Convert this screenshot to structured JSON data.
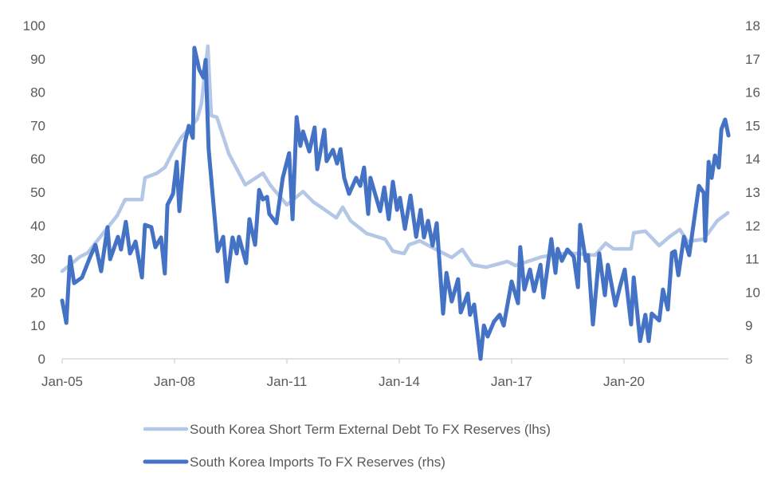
{
  "chart_data": {
    "type": "line",
    "title": "",
    "y_left": {
      "min": 0,
      "max": 100,
      "ticks": [
        "0",
        "10",
        "20",
        "30",
        "40",
        "50",
        "60",
        "70",
        "80",
        "90",
        "100"
      ]
    },
    "y_right": {
      "min": 8,
      "max": 18,
      "ticks": [
        "8",
        "9",
        "10",
        "11",
        "12",
        "13",
        "14",
        "15",
        "16",
        "17",
        "18"
      ]
    },
    "x": {
      "min": 2005.0,
      "max": 2022.8,
      "ticks": [
        {
          "label": "Jan-05",
          "value": 2005
        },
        {
          "label": "Jan-08",
          "value": 2008
        },
        {
          "label": "Jan-11",
          "value": 2011
        },
        {
          "label": "Jan-14",
          "value": 2014
        },
        {
          "label": "Jan-17",
          "value": 2017
        },
        {
          "label": "Jan-20",
          "value": 2020
        }
      ]
    },
    "grid": false,
    "legend_placement": "bottom",
    "series": [
      {
        "name": "South Korea Short Term External Debt To FX Reserves (lhs)",
        "axis": "left",
        "color": "#B4C7E7",
        "points": [
          [
            2005.0,
            26.3
          ],
          [
            2005.47,
            30.6
          ],
          [
            2005.68,
            31.8
          ],
          [
            2006.47,
            43
          ],
          [
            2006.68,
            47.8
          ],
          [
            2007.13,
            47.8
          ],
          [
            2007.21,
            54.3
          ],
          [
            2007.53,
            55.7
          ],
          [
            2007.74,
            57.4
          ],
          [
            2007.96,
            62.2
          ],
          [
            2008.17,
            66.3
          ],
          [
            2008.6,
            71.8
          ],
          [
            2008.72,
            76.6
          ],
          [
            2008.89,
            93.8
          ],
          [
            2008.98,
            73
          ],
          [
            2009.13,
            72.5
          ],
          [
            2009.45,
            61.5
          ],
          [
            2009.89,
            52.2
          ],
          [
            2010.36,
            55.7
          ],
          [
            2010.57,
            51.9
          ],
          [
            2011.0,
            46.2
          ],
          [
            2011.43,
            50.2
          ],
          [
            2011.7,
            47.1
          ],
          [
            2011.91,
            45.5
          ],
          [
            2012.32,
            42.3
          ],
          [
            2012.49,
            45.5
          ],
          [
            2012.7,
            41.4
          ],
          [
            2013.13,
            37.6
          ],
          [
            2013.62,
            35.9
          ],
          [
            2013.83,
            32.3
          ],
          [
            2014.13,
            31.6
          ],
          [
            2014.26,
            34.2
          ],
          [
            2014.55,
            35.4
          ],
          [
            2014.98,
            32.8
          ],
          [
            2015.4,
            30.4
          ],
          [
            2015.68,
            32.8
          ],
          [
            2015.96,
            28.2
          ],
          [
            2016.32,
            27.5
          ],
          [
            2016.89,
            29.2
          ],
          [
            2017.1,
            28
          ],
          [
            2017.8,
            30.6
          ],
          [
            2018.51,
            31.8
          ],
          [
            2019.23,
            31.1
          ],
          [
            2019.51,
            34.7
          ],
          [
            2019.72,
            33
          ],
          [
            2020.19,
            33
          ],
          [
            2020.26,
            37.8
          ],
          [
            2020.57,
            38.3
          ],
          [
            2020.94,
            34
          ],
          [
            2021.21,
            36.6
          ],
          [
            2021.49,
            38.8
          ],
          [
            2021.7,
            35.2
          ],
          [
            2022.13,
            35.9
          ],
          [
            2022.49,
            41.4
          ],
          [
            2022.77,
            43.8
          ]
        ]
      },
      {
        "name": "South Korea Imports To FX Reserves (rhs)",
        "axis": "right",
        "color": "#4472C4",
        "points": [
          [
            2005.0,
            9.75
          ],
          [
            2005.11,
            9.08
          ],
          [
            2005.21,
            11.06
          ],
          [
            2005.32,
            10.27
          ],
          [
            2005.53,
            10.44
          ],
          [
            2005.74,
            11.04
          ],
          [
            2005.89,
            11.42
          ],
          [
            2006.04,
            10.63
          ],
          [
            2006.21,
            11.95
          ],
          [
            2006.28,
            10.99
          ],
          [
            2006.49,
            11.66
          ],
          [
            2006.57,
            11.28
          ],
          [
            2006.7,
            12.11
          ],
          [
            2006.81,
            11.16
          ],
          [
            2006.96,
            11.52
          ],
          [
            2007.13,
            10.44
          ],
          [
            2007.21,
            12.02
          ],
          [
            2007.38,
            11.95
          ],
          [
            2007.49,
            11.35
          ],
          [
            2007.64,
            11.64
          ],
          [
            2007.74,
            10.56
          ],
          [
            2007.81,
            12.62
          ],
          [
            2007.96,
            12.95
          ],
          [
            2008.06,
            13.91
          ],
          [
            2008.13,
            12.43
          ],
          [
            2008.28,
            14.51
          ],
          [
            2008.38,
            14.99
          ],
          [
            2008.49,
            14.63
          ],
          [
            2008.53,
            17.33
          ],
          [
            2008.66,
            16.68
          ],
          [
            2008.77,
            16.44
          ],
          [
            2008.83,
            16.97
          ],
          [
            2008.91,
            14.29
          ],
          [
            2009.15,
            11.23
          ],
          [
            2009.3,
            11.66
          ],
          [
            2009.4,
            10.32
          ],
          [
            2009.55,
            11.64
          ],
          [
            2009.66,
            11.16
          ],
          [
            2009.72,
            11.66
          ],
          [
            2009.91,
            10.87
          ],
          [
            2010.0,
            12.19
          ],
          [
            2010.15,
            11.42
          ],
          [
            2010.26,
            13.07
          ],
          [
            2010.36,
            12.78
          ],
          [
            2010.47,
            12.86
          ],
          [
            2010.53,
            12.35
          ],
          [
            2010.72,
            12.07
          ],
          [
            2010.89,
            13.43
          ],
          [
            2011.06,
            14.17
          ],
          [
            2011.15,
            12.19
          ],
          [
            2011.26,
            15.25
          ],
          [
            2011.36,
            14.39
          ],
          [
            2011.43,
            14.82
          ],
          [
            2011.6,
            14.22
          ],
          [
            2011.74,
            14.94
          ],
          [
            2011.81,
            13.69
          ],
          [
            2012.0,
            14.87
          ],
          [
            2012.06,
            13.93
          ],
          [
            2012.23,
            14.27
          ],
          [
            2012.34,
            13.86
          ],
          [
            2012.43,
            14.29
          ],
          [
            2012.53,
            13.43
          ],
          [
            2012.66,
            12.95
          ],
          [
            2012.85,
            13.43
          ],
          [
            2012.96,
            13.19
          ],
          [
            2013.06,
            13.74
          ],
          [
            2013.17,
            12.35
          ],
          [
            2013.23,
            13.43
          ],
          [
            2013.49,
            12.43
          ],
          [
            2013.6,
            13.14
          ],
          [
            2013.72,
            12.19
          ],
          [
            2013.83,
            13.31
          ],
          [
            2013.94,
            12.47
          ],
          [
            2014.02,
            12.83
          ],
          [
            2014.15,
            11.9
          ],
          [
            2014.3,
            12.9
          ],
          [
            2014.45,
            11.66
          ],
          [
            2014.57,
            12.47
          ],
          [
            2014.66,
            11.64
          ],
          [
            2014.77,
            12.14
          ],
          [
            2014.89,
            11.4
          ],
          [
            2015.0,
            12.07
          ],
          [
            2015.17,
            9.36
          ],
          [
            2015.26,
            10.58
          ],
          [
            2015.4,
            9.72
          ],
          [
            2015.57,
            10.39
          ],
          [
            2015.64,
            9.39
          ],
          [
            2015.83,
            9.96
          ],
          [
            2015.89,
            9.32
          ],
          [
            2016.0,
            9.63
          ],
          [
            2016.17,
            8.0
          ],
          [
            2016.26,
            9.0
          ],
          [
            2016.36,
            8.67
          ],
          [
            2016.53,
            9.12
          ],
          [
            2016.68,
            9.32
          ],
          [
            2016.79,
            9.0
          ],
          [
            2017.0,
            10.32
          ],
          [
            2017.17,
            9.67
          ],
          [
            2017.23,
            11.35
          ],
          [
            2017.34,
            10.08
          ],
          [
            2017.49,
            10.68
          ],
          [
            2017.6,
            10.03
          ],
          [
            2017.77,
            10.82
          ],
          [
            2017.85,
            9.84
          ],
          [
            2018.06,
            11.59
          ],
          [
            2018.17,
            10.58
          ],
          [
            2018.23,
            11.3
          ],
          [
            2018.34,
            10.94
          ],
          [
            2018.49,
            11.28
          ],
          [
            2018.66,
            11.06
          ],
          [
            2018.77,
            10.15
          ],
          [
            2018.83,
            12.02
          ],
          [
            2018.98,
            10.94
          ],
          [
            2019.04,
            11.11
          ],
          [
            2019.17,
            9.03
          ],
          [
            2019.34,
            11.16
          ],
          [
            2019.49,
            9.91
          ],
          [
            2019.57,
            10.82
          ],
          [
            2019.77,
            9.6
          ],
          [
            2019.89,
            10.15
          ],
          [
            2020.02,
            10.68
          ],
          [
            2020.19,
            9.03
          ],
          [
            2020.26,
            10.44
          ],
          [
            2020.43,
            8.53
          ],
          [
            2020.57,
            9.32
          ],
          [
            2020.66,
            8.53
          ],
          [
            2020.74,
            9.36
          ],
          [
            2020.94,
            9.15
          ],
          [
            2021.04,
            10.08
          ],
          [
            2021.17,
            9.48
          ],
          [
            2021.28,
            11.18
          ],
          [
            2021.36,
            11.23
          ],
          [
            2021.45,
            10.51
          ],
          [
            2021.6,
            11.66
          ],
          [
            2021.74,
            11.11
          ],
          [
            2022.0,
            13.19
          ],
          [
            2022.13,
            12.98
          ],
          [
            2022.17,
            11.54
          ],
          [
            2022.26,
            13.91
          ],
          [
            2022.34,
            13.43
          ],
          [
            2022.43,
            14.1
          ],
          [
            2022.53,
            13.74
          ],
          [
            2022.6,
            14.89
          ],
          [
            2022.7,
            15.18
          ],
          [
            2022.79,
            14.7
          ]
        ]
      }
    ]
  }
}
